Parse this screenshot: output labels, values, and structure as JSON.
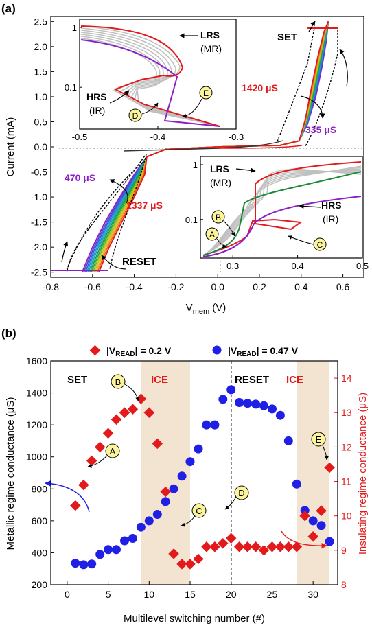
{
  "figure": {
    "panels": [
      {
        "panel_label": "(a)",
        "type": "line",
        "xlabel": "V",
        "xlabel_sub": "mem",
        "xlabel_unit": " (V)",
        "ylabel": "Current (mA)",
        "xlim": [
          -0.8,
          0.7
        ],
        "ylim": [
          -2.6,
          2.6
        ],
        "xticks": [
          "-0.8",
          "-0.6",
          "-0.4",
          "-0.2",
          "0.0",
          "0.2",
          "0.4",
          "0.6"
        ],
        "yticks": [
          "-2.5",
          "-2.0",
          "-1.5",
          "-1.0",
          "-0.5",
          "0.0",
          "0.5",
          "1.0",
          "1.5",
          "2.0",
          "2.5"
        ],
        "annotations": {
          "set": "SET",
          "reset": "RESET",
          "set_high": "1420 μS",
          "set_low": "335 μS",
          "reset_low": "470 μS",
          "reset_high": "1337 μS"
        },
        "insets": [
          {
            "position": "top-left",
            "xlim": [
              -0.5,
              -0.3
            ],
            "xticks": [
              "-0.5",
              "-0.4",
              "-0.3"
            ],
            "yticks": [
              "1",
              "0.1"
            ],
            "y_scale": "log",
            "labels": {
              "lrs": "LRS",
              "lrs_sub": "(MR)",
              "hrs": "HRS",
              "hrs_sub": "(IR)",
              "mark1": "D",
              "mark2": "E"
            }
          },
          {
            "position": "bottom-right",
            "xlim": [
              0.25,
              0.5
            ],
            "xticks": [
              "0.3",
              "0.4",
              "0.5"
            ],
            "yticks": [
              "1",
              "0.1"
            ],
            "y_scale": "log",
            "labels": {
              "lrs": "LRS",
              "lrs_sub": "(MR)",
              "hrs": "HRS",
              "hrs_sub": "(IR)",
              "mark1": "A",
              "mark2": "B",
              "mark3": "C"
            }
          }
        ]
      },
      {
        "panel_label": "(b)",
        "type": "scatter",
        "xlabel": "Multilevel switching number (#)",
        "ylabel_left": "Metallic regime conductance (μS)",
        "ylabel_right": "Insulating regime conductance (μS)",
        "xlim": [
          -2,
          33
        ],
        "ylim_left": [
          200,
          1600
        ],
        "ylim_right": [
          8,
          14.5
        ],
        "xticks": [
          "0",
          "5",
          "10",
          "15",
          "20",
          "25",
          "30"
        ],
        "yticks_left": [
          "200",
          "400",
          "600",
          "800",
          "1000",
          "1200",
          "1400",
          "1600"
        ],
        "yticks_right": [
          "8",
          "9",
          "10",
          "11",
          "12",
          "13",
          "14"
        ],
        "legend": {
          "placement": "top",
          "red_prefix": "|V",
          "red_sub": "READ",
          "red_suffix": "| = 0.2 V",
          "blue_prefix": "|V",
          "blue_sub": "READ",
          "blue_suffix": "| = 0.47 V"
        },
        "region_labels": {
          "set": "SET",
          "ice1": "ICE",
          "reset": "RESET",
          "ice2": "ICE"
        },
        "callouts": [
          "A",
          "B",
          "C",
          "D",
          "E"
        ]
      }
    ]
  },
  "colors": {
    "red": "#e31a1c",
    "blue": "#1f1fe6",
    "purple": "#8b1fc6",
    "green": "#1a8a3a",
    "ice_band": "#f2e4d0",
    "callout_fill": "#fbf49c"
  },
  "chart_data": [
    {
      "type": "line",
      "title": "",
      "xlabel": "Vmem (V)",
      "ylabel": "Current (mA)",
      "xlim": [
        -0.8,
        0.7
      ],
      "ylim": [
        -2.6,
        2.6
      ],
      "series": [
        {
          "name": "SET 335 μS",
          "color": "#8b1fc6",
          "x": [
            0.0,
            0.3,
            0.39,
            0.43,
            0.47,
            0.5,
            0.52,
            0.53,
            0.53
          ],
          "y": [
            0.0,
            0.03,
            0.12,
            0.45,
            1.0,
            1.6,
            2.1,
            2.5,
            2.5
          ]
        },
        {
          "name": "SET 1420 μS",
          "color": "#e31a1c",
          "x": [
            0.0,
            0.3,
            0.39,
            0.42,
            0.45,
            0.48,
            0.51,
            0.53,
            0.53
          ],
          "y": [
            0.0,
            0.03,
            0.12,
            0.55,
            1.2,
            1.8,
            2.3,
            2.5,
            2.5
          ]
        },
        {
          "name": "RESET 470 μS",
          "color": "#8b1fc6",
          "x": [
            0.0,
            -0.25,
            -0.34,
            -0.4,
            -0.47,
            -0.54,
            -0.6,
            -0.65,
            -0.65
          ],
          "y": [
            0.0,
            -0.05,
            -0.2,
            -0.55,
            -1.0,
            -1.5,
            -2.0,
            -2.5,
            -2.5
          ]
        },
        {
          "name": "RESET 1337 μS",
          "color": "#e31a1c",
          "x": [
            0.0,
            -0.25,
            -0.34,
            -0.35,
            -0.4,
            -0.46,
            -0.52,
            -0.57,
            -0.57
          ],
          "y": [
            0.0,
            -0.05,
            -0.2,
            -0.55,
            -1.0,
            -1.5,
            -2.0,
            -2.5,
            -2.5
          ]
        }
      ]
    },
    {
      "type": "scatter",
      "title": "",
      "xlabel": "Multilevel switching number (#)",
      "ylabel": "Metallic regime conductance (μS)",
      "ylabel_right": "Insulating regime conductance (μS)",
      "xlim": [
        -2,
        33
      ],
      "ylim": [
        200,
        1600
      ],
      "ylim_right": [
        8,
        14.5
      ],
      "shaded_regions": [
        [
          9,
          15
        ],
        [
          28,
          32
        ]
      ],
      "vertical_line": 20,
      "series": [
        {
          "name": "|VREAD| = 0.2 V",
          "marker": "diamond",
          "axis": "right",
          "color": "#e31a1c",
          "x": [
            1,
            2,
            3,
            4,
            5,
            6,
            7,
            8,
            9,
            10,
            11,
            12,
            13,
            14,
            15,
            16,
            17,
            18,
            19,
            20,
            21,
            22,
            23,
            24,
            25,
            26,
            27,
            28,
            29,
            30,
            31,
            32
          ],
          "y": [
            10.3,
            10.9,
            11.6,
            12.0,
            12.4,
            12.8,
            13.0,
            13.1,
            13.4,
            13.0,
            12.1,
            10.7,
            8.9,
            8.6,
            8.6,
            8.75,
            9.1,
            9.1,
            9.2,
            9.35,
            9.1,
            9.1,
            9.1,
            9.0,
            9.1,
            9.1,
            9.1,
            9.1,
            10.0,
            9.4,
            10.15,
            11.4
          ]
        },
        {
          "name": "|VREAD| = 0.47 V",
          "marker": "circle",
          "axis": "left",
          "color": "#1f1fe6",
          "x": [
            1,
            2,
            3,
            4,
            5,
            6,
            7,
            8,
            9,
            10,
            11,
            12,
            13,
            14,
            15,
            16,
            17,
            18,
            19,
            20,
            21,
            22,
            23,
            24,
            25,
            26,
            27,
            28,
            29,
            30,
            31,
            32
          ],
          "y": [
            335,
            325,
            330,
            390,
            420,
            420,
            475,
            490,
            560,
            600,
            640,
            720,
            800,
            880,
            970,
            1050,
            1200,
            1200,
            1360,
            1420,
            1340,
            1335,
            1330,
            1320,
            1300,
            1260,
            1100,
            830,
            665,
            600,
            570,
            470
          ]
        }
      ]
    }
  ]
}
